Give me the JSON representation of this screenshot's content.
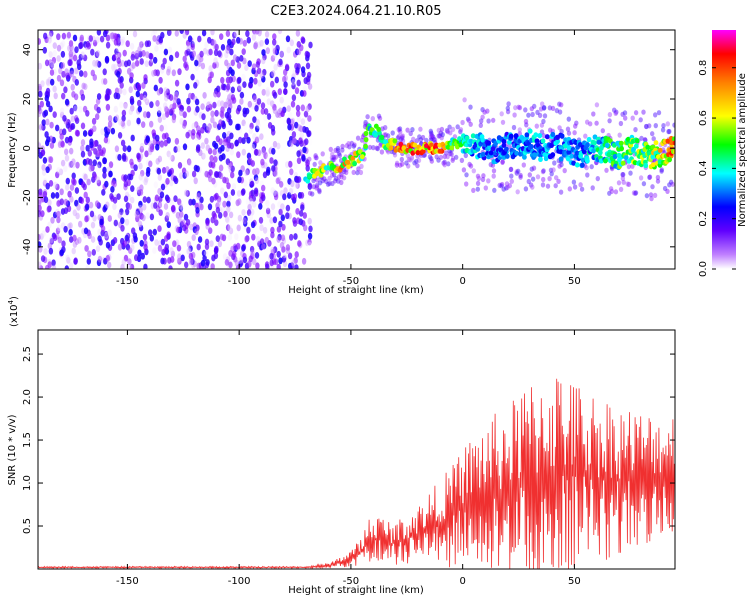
{
  "title": "C2E3.2024.064.21.10.R05",
  "chart_data": [
    {
      "type": "heatmap",
      "xlabel": "Height of straight line (km)",
      "ylabel": "Frequency (Hz)",
      "xlim": [
        -190,
        95
      ],
      "ylim": [
        -49,
        48
      ],
      "xticks": [
        -150,
        -100,
        -50,
        0,
        50
      ],
      "yticks": [
        -40,
        -20,
        0,
        20,
        40
      ],
      "colorbar": {
        "label": "Normalized spectral amplitude",
        "range": [
          0,
          0.95
        ],
        "ticks": [
          0.0,
          0.2,
          0.4,
          0.6,
          0.8
        ],
        "colormap": [
          "#ffffff",
          "#8000ff",
          "#0000ff",
          "#00ffff",
          "#00ff00",
          "#ffff00",
          "#ff8000",
          "#ff0000",
          "#ff00ff"
        ]
      },
      "ridge": {
        "x": [
          -70,
          -65,
          -60,
          -55,
          -50,
          -45,
          -42,
          -38,
          -35,
          -30,
          -25,
          -20,
          -15,
          -10,
          -5,
          0,
          5,
          10,
          15,
          20,
          25,
          30,
          35,
          40,
          45,
          50,
          55,
          60,
          65,
          70,
          75,
          80,
          85,
          90,
          95
        ],
        "y": [
          -12,
          -10,
          -8,
          -7,
          -5,
          -3,
          8,
          7,
          2,
          1,
          0,
          0,
          0,
          0,
          2,
          3,
          0,
          1,
          -1,
          1,
          0,
          2,
          0,
          1,
          0,
          -2,
          -2,
          0,
          -1,
          -3,
          0,
          -2,
          -3,
          -2,
          0
        ],
        "amplitude": [
          0.5,
          0.7,
          0.6,
          0.8,
          0.75,
          0.6,
          0.55,
          0.5,
          0.6,
          0.85,
          0.9,
          0.9,
          0.88,
          0.85,
          0.6,
          0.5,
          0.4,
          0.35,
          0.35,
          0.35,
          0.35,
          0.4,
          0.4,
          0.35,
          0.4,
          0.35,
          0.4,
          0.45,
          0.5,
          0.55,
          0.6,
          0.6,
          0.65,
          0.75,
          0.85
        ]
      }
    },
    {
      "type": "line",
      "xlabel": "Height of straight line (km)",
      "ylabel": "SNR (10 * v/v)",
      "multiplier_label": "(x10",
      "multiplier_exp": "4",
      "xlim": [
        -190,
        95
      ],
      "ylim": [
        0,
        2.78
      ],
      "xticks": [
        -150,
        -100,
        -50,
        0,
        50
      ],
      "yticks": [
        0.5,
        1.0,
        1.5,
        2.0,
        2.5
      ],
      "color": "#f03030",
      "envelope": {
        "x": [
          -190,
          -100,
          -70,
          -60,
          -55,
          -50,
          -45,
          -42,
          -38,
          -35,
          -30,
          -25,
          -20,
          -10,
          -5,
          0,
          5,
          10,
          20,
          30,
          40,
          50,
          60,
          70,
          80,
          90,
          95
        ],
        "mean": [
          0.02,
          0.02,
          0.02,
          0.04,
          0.08,
          0.12,
          0.2,
          0.32,
          0.35,
          0.3,
          0.3,
          0.35,
          0.4,
          0.55,
          0.6,
          0.75,
          0.8,
          0.85,
          0.9,
          1.0,
          1.1,
          1.1,
          1.05,
          1.05,
          1.05,
          1.1,
          1.15
        ],
        "amp": [
          0.01,
          0.01,
          0.01,
          0.03,
          0.06,
          0.1,
          0.18,
          0.3,
          0.3,
          0.3,
          0.25,
          0.3,
          0.35,
          0.5,
          0.6,
          0.65,
          0.8,
          0.9,
          1.0,
          1.2,
          1.3,
          1.1,
          1.0,
          0.9,
          0.8,
          0.7,
          0.7
        ]
      }
    }
  ]
}
